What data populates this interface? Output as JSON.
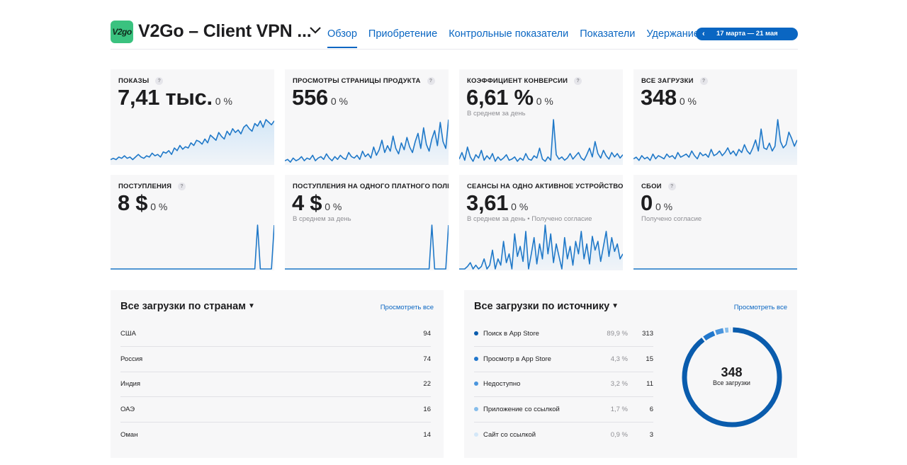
{
  "header": {
    "app_icon_text": "V2go",
    "app_title": "V2Go – Client VPN ...",
    "tabs": [
      "Обзор",
      "Приобретение",
      "Контрольные показатели",
      "Показатели",
      "Удержание"
    ],
    "active_tab": "Обзор",
    "date_range": "17 марта — 21 мая"
  },
  "colors": {
    "accent": "#0a66c2",
    "chart_line": "#1f78c8",
    "chart_fill": "#cfe5f7",
    "app_icon": "#3ac27f"
  },
  "metrics": [
    {
      "label": "ПОКАЗЫ",
      "value": "7,41 тыс.",
      "change": "0 %",
      "sub": ""
    },
    {
      "label": "ПРОСМОТРЫ СТРАНИЦЫ ПРОДУКТА",
      "value": "556",
      "change": "0 %",
      "sub": ""
    },
    {
      "label": "КОЭФФИЦИЕНТ КОНВЕРСИИ",
      "value": "6,61 %",
      "change": "0 %",
      "sub": "В среднем за день"
    },
    {
      "label": "ВСЕ ЗАГРУЗКИ",
      "value": "348",
      "change": "0 %",
      "sub": ""
    },
    {
      "label": "ПОСТУПЛЕНИЯ",
      "value": "8 $",
      "change": "0 %",
      "sub": ""
    },
    {
      "label": "ПОСТУПЛЕНИЯ НА ОДНОГО ПЛАТНОГО ПОЛЬЗ",
      "value": "4 $",
      "change": "0 %",
      "sub": "В среднем за день"
    },
    {
      "label": "СЕАНСЫ НА ОДНО АКТИВНОЕ УСТРОЙСТВО",
      "value": "3,61",
      "change": "0 %",
      "sub": "В среднем за день • Получено согласие"
    },
    {
      "label": "СБОИ",
      "value": "0",
      "change": "0 %",
      "sub": "Получено согласие"
    }
  ],
  "sparklines": [
    [
      3,
      4,
      3,
      5,
      4,
      6,
      4,
      5,
      3,
      5,
      7,
      5,
      4,
      6,
      5,
      8,
      6,
      7,
      5,
      9,
      8,
      10,
      7,
      12,
      10,
      14,
      11,
      13,
      12,
      16,
      14,
      18,
      17,
      15,
      19,
      16,
      22,
      20,
      18,
      24,
      21,
      19,
      25,
      22,
      27,
      24,
      26,
      23,
      28,
      30,
      27,
      25,
      31,
      29,
      33,
      28,
      34,
      32,
      30,
      33
    ],
    [
      2,
      3,
      1,
      4,
      2,
      3,
      5,
      2,
      4,
      3,
      6,
      2,
      4,
      5,
      3,
      7,
      4,
      2,
      5,
      3,
      6,
      4,
      3,
      8,
      5,
      4,
      6,
      3,
      9,
      5,
      7,
      4,
      12,
      6,
      10,
      17,
      8,
      13,
      9,
      20,
      11,
      7,
      15,
      10,
      19,
      12,
      8,
      16,
      22,
      11,
      26,
      14,
      9,
      18,
      24,
      13,
      30,
      16,
      11,
      32
    ],
    [
      4,
      10,
      3,
      15,
      6,
      2,
      8,
      5,
      12,
      3,
      7,
      4,
      9,
      2,
      6,
      3,
      5,
      8,
      3,
      4,
      6,
      2,
      5,
      3,
      9,
      4,
      3,
      7,
      5,
      14,
      4,
      2,
      6,
      3,
      40,
      8,
      4,
      6,
      3,
      5,
      9,
      4,
      7,
      10,
      5,
      3,
      8,
      14,
      6,
      20,
      9,
      5,
      12,
      7,
      4,
      10,
      6,
      9,
      5,
      8
    ],
    [
      3,
      4,
      2,
      5,
      3,
      4,
      2,
      6,
      3,
      5,
      4,
      3,
      6,
      4,
      5,
      3,
      7,
      4,
      5,
      6,
      4,
      8,
      5,
      3,
      7,
      5,
      6,
      4,
      9,
      5,
      6,
      8,
      5,
      7,
      10,
      6,
      8,
      5,
      9,
      7,
      12,
      8,
      6,
      10,
      15,
      8,
      22,
      10,
      9,
      13,
      8,
      11,
      28,
      14,
      10,
      12,
      20,
      16,
      11,
      15
    ],
    [
      0,
      0,
      0,
      0,
      0,
      0,
      0,
      0,
      0,
      0,
      0,
      0,
      0,
      0,
      0,
      0,
      0,
      0,
      0,
      0,
      0,
      0,
      0,
      0,
      0,
      0,
      0,
      0,
      0,
      0,
      0,
      0,
      0,
      0,
      0,
      0,
      0,
      0,
      0,
      0,
      0,
      0,
      0,
      0,
      0,
      0,
      0,
      0,
      0,
      0,
      0,
      0,
      0,
      50,
      0,
      0,
      0,
      0,
      0,
      50
    ],
    [
      0,
      0,
      0,
      0,
      0,
      0,
      0,
      0,
      0,
      0,
      0,
      0,
      0,
      0,
      0,
      0,
      0,
      0,
      0,
      0,
      0,
      0,
      0,
      0,
      0,
      0,
      0,
      0,
      0,
      0,
      0,
      0,
      0,
      0,
      0,
      0,
      0,
      0,
      0,
      0,
      0,
      0,
      0,
      0,
      0,
      0,
      0,
      0,
      0,
      0,
      0,
      0,
      0,
      50,
      0,
      0,
      0,
      0,
      0,
      50
    ],
    [
      0,
      0,
      0,
      2,
      5,
      0,
      3,
      0,
      2,
      8,
      0,
      3,
      15,
      0,
      8,
      3,
      22,
      5,
      12,
      0,
      28,
      10,
      18,
      6,
      30,
      0,
      12,
      25,
      4,
      20,
      8,
      35,
      12,
      28,
      5,
      20,
      10,
      0,
      25,
      8,
      18,
      3,
      22,
      12,
      30,
      8,
      20,
      4,
      26,
      15,
      22,
      6,
      18,
      30,
      10,
      25,
      14,
      20,
      8,
      12
    ],
    [
      0,
      0,
      0,
      0,
      0,
      0,
      0,
      0,
      0,
      0,
      0,
      0,
      0,
      0,
      0,
      0,
      0,
      0,
      0,
      0,
      0,
      0,
      0,
      0,
      0,
      0,
      0,
      0,
      0,
      0,
      0,
      0,
      0,
      0,
      0,
      0,
      0,
      0,
      0,
      0,
      0,
      0,
      0,
      0,
      0,
      0,
      0,
      0,
      0,
      0,
      0,
      0,
      0,
      0,
      0,
      0,
      0,
      0,
      0,
      0
    ]
  ],
  "countries_panel": {
    "title": "Все загрузки по странам",
    "view_all": "Просмотреть все",
    "rows": [
      {
        "name": "США",
        "value": "94"
      },
      {
        "name": "Россия",
        "value": "74"
      },
      {
        "name": "Индия",
        "value": "22"
      },
      {
        "name": "ОАЭ",
        "value": "16"
      },
      {
        "name": "Оман",
        "value": "14"
      }
    ]
  },
  "sources_panel": {
    "title": "Все загрузки по источнику",
    "view_all": "Просмотреть все",
    "rows": [
      {
        "name": "Поиск в App Store",
        "pct": "89,9 %",
        "value": "313",
        "color": "#0a5cad"
      },
      {
        "name": "Просмотр в App Store",
        "pct": "4,3 %",
        "value": "15",
        "color": "#2177cc"
      },
      {
        "name": "Недоступно",
        "pct": "3,2 %",
        "value": "11",
        "color": "#4a95dd"
      },
      {
        "name": "Приложение со ссылкой",
        "pct": "1,7 %",
        "value": "6",
        "color": "#86bdeb"
      },
      {
        "name": "Сайт со ссылкой",
        "pct": "0,9 %",
        "value": "3",
        "color": "#d3e7f8"
      }
    ],
    "donut": {
      "total": "348",
      "label": "Все загрузки",
      "shares": [
        89.9,
        4.3,
        3.2,
        1.7,
        0.9
      ]
    }
  }
}
